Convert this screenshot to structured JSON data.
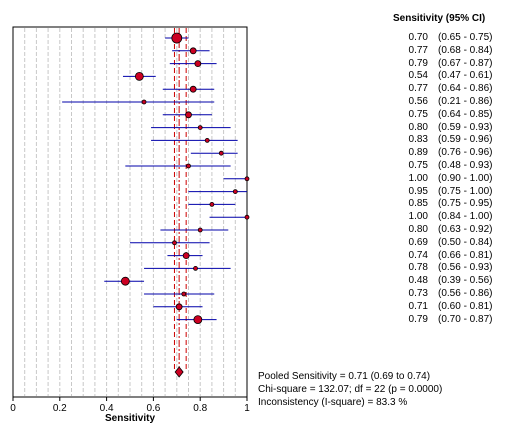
{
  "chart_data": {
    "type": "forest",
    "header": "Sensitivity (95% CI)",
    "xlabel": "Sensitivity",
    "xlim": [
      0,
      1
    ],
    "xticks": [
      0,
      0.2,
      0.4,
      0.6,
      0.8,
      1
    ],
    "xtick_labels": [
      "0",
      "0.2",
      "0.4",
      "0.6",
      "0.8",
      "1"
    ],
    "grid": true,
    "pooled": {
      "estimate": 0.71,
      "lower": 0.69,
      "upper": 0.74
    },
    "studies": [
      {
        "est": 0.7,
        "lo": 0.65,
        "hi": 0.75,
        "est_label": "0.70",
        "ci_label": "(0.65 - 0.75)"
      },
      {
        "est": 0.77,
        "lo": 0.68,
        "hi": 0.84,
        "est_label": "0.77",
        "ci_label": "(0.68 - 0.84)"
      },
      {
        "est": 0.79,
        "lo": 0.67,
        "hi": 0.87,
        "est_label": "0.79",
        "ci_label": "(0.67 - 0.87)"
      },
      {
        "est": 0.54,
        "lo": 0.47,
        "hi": 0.61,
        "est_label": "0.54",
        "ci_label": "(0.47 - 0.61)"
      },
      {
        "est": 0.77,
        "lo": 0.64,
        "hi": 0.86,
        "est_label": "0.77",
        "ci_label": "(0.64 - 0.86)"
      },
      {
        "est": 0.56,
        "lo": 0.21,
        "hi": 0.86,
        "est_label": "0.56",
        "ci_label": "(0.21 - 0.86)"
      },
      {
        "est": 0.75,
        "lo": 0.64,
        "hi": 0.85,
        "est_label": "0.75",
        "ci_label": "(0.64 - 0.85)"
      },
      {
        "est": 0.8,
        "lo": 0.59,
        "hi": 0.93,
        "est_label": "0.80",
        "ci_label": "(0.59 - 0.93)"
      },
      {
        "est": 0.83,
        "lo": 0.59,
        "hi": 0.96,
        "est_label": "0.83",
        "ci_label": "(0.59 - 0.96)"
      },
      {
        "est": 0.89,
        "lo": 0.76,
        "hi": 0.96,
        "est_label": "0.89",
        "ci_label": "(0.76 - 0.96)"
      },
      {
        "est": 0.75,
        "lo": 0.48,
        "hi": 0.93,
        "est_label": "0.75",
        "ci_label": "(0.48 - 0.93)"
      },
      {
        "est": 1.0,
        "lo": 0.9,
        "hi": 1.0,
        "est_label": "1.00",
        "ci_label": "(0.90 - 1.00)"
      },
      {
        "est": 0.95,
        "lo": 0.75,
        "hi": 1.0,
        "est_label": "0.95",
        "ci_label": "(0.75 - 1.00)"
      },
      {
        "est": 0.85,
        "lo": 0.75,
        "hi": 0.95,
        "est_label": "0.85",
        "ci_label": "(0.75 - 0.95)"
      },
      {
        "est": 1.0,
        "lo": 0.84,
        "hi": 1.0,
        "est_label": "1.00",
        "ci_label": "(0.84 - 1.00)"
      },
      {
        "est": 0.8,
        "lo": 0.63,
        "hi": 0.92,
        "est_label": "0.80",
        "ci_label": "(0.63 - 0.92)"
      },
      {
        "est": 0.69,
        "lo": 0.5,
        "hi": 0.84,
        "est_label": "0.69",
        "ci_label": "(0.50 - 0.84)"
      },
      {
        "est": 0.74,
        "lo": 0.66,
        "hi": 0.81,
        "est_label": "0.74",
        "ci_label": "(0.66 - 0.81)"
      },
      {
        "est": 0.78,
        "lo": 0.56,
        "hi": 0.93,
        "est_label": "0.78",
        "ci_label": "(0.56 - 0.93)"
      },
      {
        "est": 0.48,
        "lo": 0.39,
        "hi": 0.56,
        "est_label": "0.48",
        "ci_label": "(0.39 - 0.56)"
      },
      {
        "est": 0.73,
        "lo": 0.56,
        "hi": 0.86,
        "est_label": "0.73",
        "ci_label": "(0.56 - 0.86)"
      },
      {
        "est": 0.71,
        "lo": 0.6,
        "hi": 0.81,
        "est_label": "0.71",
        "ci_label": "(0.60 - 0.81)"
      },
      {
        "est": 0.79,
        "lo": 0.7,
        "hi": 0.87,
        "est_label": "0.79",
        "ci_label": "(0.70 - 0.87)"
      }
    ],
    "weights": [
      5,
      3,
      3,
      4,
      3,
      2,
      3,
      2,
      2,
      2,
      2,
      2,
      2,
      2,
      2,
      2,
      2,
      3,
      2,
      4,
      2,
      3,
      4
    ],
    "summary_lines": [
      "Pooled Sensitivity = 0.71 (0.69 to 0.74)",
      "Chi-square = 132.07; df =  22 (p = 0.0000)",
      "Inconsistency (I-square) = 83.3 %"
    ],
    "colors": {
      "ci_line": "#0000aa",
      "point_fill": "#cc0022",
      "pooled_line": "#cc0000",
      "grid": "#c8c8c8"
    }
  }
}
